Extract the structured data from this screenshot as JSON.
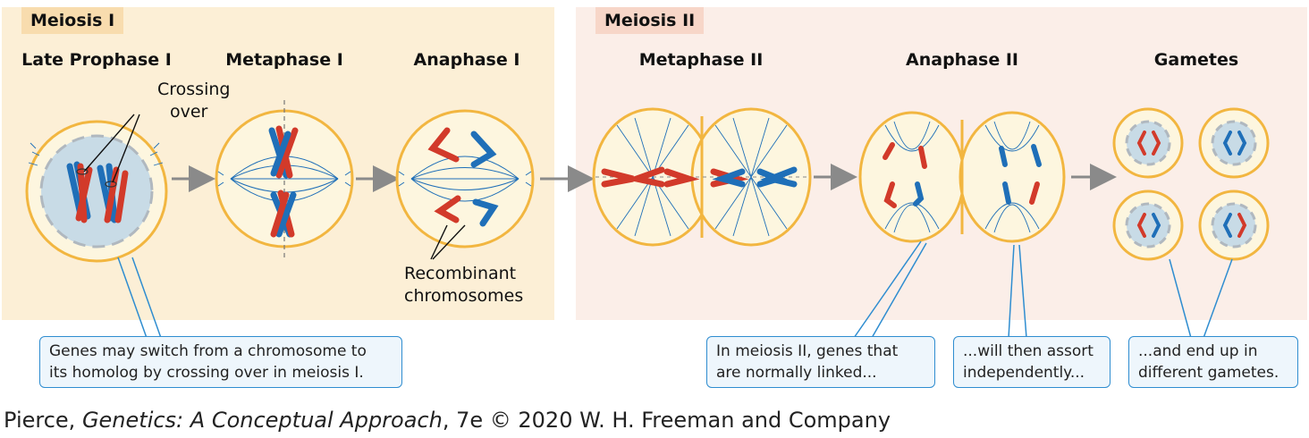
{
  "sections": {
    "meiosis1": "Meiosis I",
    "meiosis2": "Meiosis II"
  },
  "stages": {
    "late_prophase1": "Late Prophase I",
    "metaphase1": "Metaphase I",
    "anaphase1": "Anaphase I",
    "metaphase2": "Metaphase II",
    "anaphase2": "Anaphase II",
    "gametes": "Gametes"
  },
  "labels": {
    "crossing_over_line1": "Crossing",
    "crossing_over_line2": "over",
    "recombinant_line1": "Recombinant",
    "recombinant_line2": "chromosomes"
  },
  "callouts": {
    "c1_line1": "Genes may switch from a chromosome to",
    "c1_line2": "its homolog by crossing over in meiosis I.",
    "c2_line1": "In meiosis II, genes that",
    "c2_line2": "are normally linked...",
    "c3_line1": "...will then assort",
    "c3_line2": "independently...",
    "c4_line1": "...and end up in",
    "c4_line2": "different gametes."
  },
  "credit": {
    "author": "Pierce, ",
    "title": "Genetics: A Conceptual Approach",
    "rest": ", 7e © 2020 W. H. Freeman and Company"
  },
  "colors": {
    "red_chromosome": "#d23a2a",
    "blue_chromosome": "#1f6fb8",
    "cell_fill": "#fdf6df",
    "cell_border": "#f2b640",
    "nucleus": "#c8dbe6",
    "callout_border": "#2f8dd0"
  }
}
